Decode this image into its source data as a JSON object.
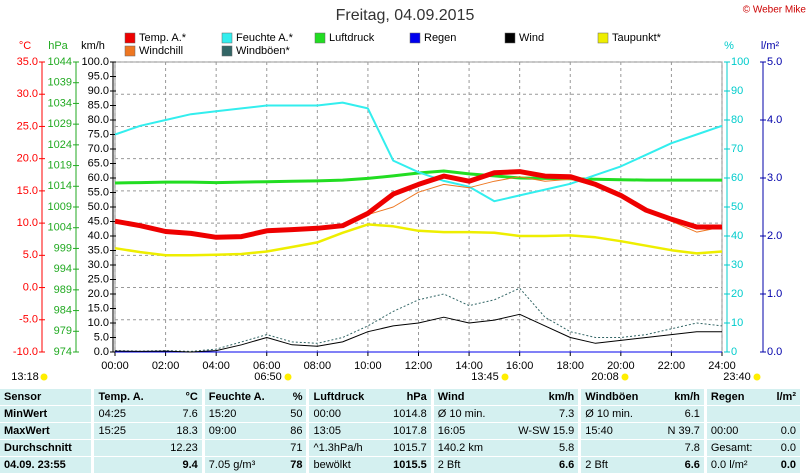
{
  "chart_data": {
    "type": "line",
    "title": "Freitag, 04.09.2015",
    "credit": "© Weber Mike",
    "x": [
      0,
      1,
      2,
      3,
      4,
      5,
      6,
      7,
      8,
      9,
      10,
      11,
      12,
      13,
      14,
      15,
      16,
      17,
      18,
      19,
      20,
      21,
      22,
      23,
      24
    ],
    "xlim": [
      0,
      24
    ],
    "xticks": [
      {
        "value": 0,
        "label": "00:00"
      },
      {
        "value": 2,
        "label": "02:00"
      },
      {
        "value": 4,
        "label": "04:00"
      },
      {
        "value": 6,
        "label": "06:00"
      },
      {
        "value": 8,
        "label": "08:00"
      },
      {
        "value": 10,
        "label": "10:00"
      },
      {
        "value": 12,
        "label": "12:00"
      },
      {
        "value": 14,
        "label": "14:00"
      },
      {
        "value": 16,
        "label": "16:00"
      },
      {
        "value": 18,
        "label": "18:00"
      },
      {
        "value": 20,
        "label": "20:00"
      },
      {
        "value": 22,
        "label": "22:00"
      },
      {
        "value": 24,
        "label": "24:00"
      }
    ],
    "grid": true,
    "grid_axis": 0,
    "axes": [
      {
        "label": "°C",
        "color": "#ff0000",
        "lim": [
          -10,
          35
        ],
        "ticks": [
          {
            "value": -10,
            "label": "-10.0"
          },
          {
            "value": -5,
            "label": "-5.0"
          },
          {
            "value": 0,
            "label": "0.0"
          },
          {
            "value": 5,
            "label": "5.0"
          },
          {
            "value": 10,
            "label": "10.0"
          },
          {
            "value": 15,
            "label": "15.0"
          },
          {
            "value": 20,
            "label": "20.0"
          },
          {
            "value": 25,
            "label": "25.0"
          },
          {
            "value": 30,
            "label": "30.0"
          },
          {
            "value": 35,
            "label": "35.0"
          }
        ]
      },
      {
        "label": "hPa",
        "color": "#22aa22",
        "lim": [
          974,
          1044
        ],
        "ticks": [
          974,
          979,
          984,
          989,
          994,
          999,
          1004,
          1009,
          1014,
          1019,
          1024,
          1029,
          1034,
          1039,
          1044
        ]
      },
      {
        "label": "km/h",
        "color": "#000000",
        "lim": [
          0,
          100
        ],
        "ticks": [
          {
            "value": 0,
            "label": "0.0"
          },
          {
            "value": 5,
            "label": "5.0"
          },
          {
            "value": 10,
            "label": "10.0"
          },
          {
            "value": 15,
            "label": "15.0"
          },
          {
            "value": 20,
            "label": "20.0"
          },
          {
            "value": 25,
            "label": "25.0"
          },
          {
            "value": 30,
            "label": "30.0"
          },
          {
            "value": 35,
            "label": "35.0"
          },
          {
            "value": 40,
            "label": "40.0"
          },
          {
            "value": 45,
            "label": "45.0"
          },
          {
            "value": 50,
            "label": "50.0"
          },
          {
            "value": 55,
            "label": "55.0"
          },
          {
            "value": 60,
            "label": "60.0"
          },
          {
            "value": 65,
            "label": "65.0"
          },
          {
            "value": 70,
            "label": "70.0"
          },
          {
            "value": 75,
            "label": "75.0"
          },
          {
            "value": 80,
            "label": "80.0"
          },
          {
            "value": 85,
            "label": "85.0"
          },
          {
            "value": 90,
            "label": "90.0"
          },
          {
            "value": 95,
            "label": "95.0"
          },
          {
            "value": 100,
            "label": "100.0"
          }
        ]
      },
      {
        "label": "%",
        "color": "#00cccc",
        "lim": [
          0,
          100
        ],
        "ticks": [
          0,
          10,
          20,
          30,
          40,
          50,
          60,
          70,
          80,
          90,
          100
        ]
      },
      {
        "label": "l/m²",
        "color": "#0000aa",
        "lim": [
          0,
          5
        ],
        "ticks": [
          {
            "value": 0,
            "label": "0.0"
          },
          {
            "value": 1,
            "label": "1.0"
          },
          {
            "value": 2,
            "label": "2.0"
          },
          {
            "value": 3,
            "label": "3.0"
          },
          {
            "value": 4,
            "label": "4.0"
          },
          {
            "value": 5,
            "label": "5.0"
          }
        ]
      }
    ],
    "series": [
      {
        "name": "Luftdruck",
        "color": "#22dd22",
        "axis": 1,
        "values": [
          1014.8,
          1014.9,
          1015.0,
          1015.0,
          1014.9,
          1015.0,
          1015.1,
          1015.2,
          1015.3,
          1015.5,
          1015.9,
          1016.5,
          1017.2,
          1017.7,
          1017.0,
          1016.5,
          1016.0,
          1015.9,
          1015.8,
          1015.7,
          1015.6,
          1015.5,
          1015.5,
          1015.5,
          1015.5
        ]
      },
      {
        "name": "Feuchte A.*",
        "color": "#33eeee",
        "axis": 3,
        "values": [
          75,
          78,
          80,
          82,
          83,
          84,
          85,
          85,
          85,
          86,
          84,
          66,
          62,
          59,
          57,
          52,
          54,
          56,
          58,
          61,
          64,
          68,
          72,
          75,
          78
        ]
      },
      {
        "name": "Taupunkt*",
        "color": "#eeee00",
        "axis": 0,
        "values": [
          6.1,
          5.5,
          5.0,
          5.0,
          5.1,
          5.2,
          5.6,
          6.3,
          7.0,
          8.5,
          9.8,
          9.5,
          8.8,
          8.6,
          8.6,
          8.5,
          8.0,
          8.0,
          8.1,
          7.8,
          7.2,
          6.5,
          5.8,
          5.3,
          5.6
        ]
      },
      {
        "name": "Windchill",
        "color": "#ee7722",
        "axis": 0,
        "values": [
          10.3,
          9.6,
          8.7,
          8.4,
          7.8,
          7.9,
          8.8,
          9.0,
          9.2,
          9.6,
          11.3,
          12.5,
          14.8,
          16.0,
          15.5,
          16.5,
          17.2,
          16.5,
          16.8,
          15.8,
          14.0,
          11.8,
          10.3,
          8.6,
          9.4
        ]
      },
      {
        "name": "Temp. A.*",
        "color": "#ee0000",
        "axis": 0,
        "values": [
          10.3,
          9.6,
          8.7,
          8.4,
          7.8,
          7.9,
          8.8,
          9.0,
          9.2,
          9.6,
          11.5,
          14.5,
          16.0,
          17.3,
          16.5,
          17.8,
          18.0,
          17.3,
          17.2,
          16.0,
          14.3,
          12.0,
          10.6,
          9.4,
          9.4
        ]
      },
      {
        "name": "Regen",
        "color": "#0000ee",
        "axis": 4,
        "values": [
          0,
          0,
          0,
          0,
          0,
          0,
          0,
          0,
          0,
          0,
          0,
          0,
          0,
          0,
          0,
          0,
          0,
          0,
          0,
          0,
          0,
          0,
          0,
          0,
          0
        ]
      },
      {
        "name": "Windböen*",
        "color": "#336666",
        "axis": 2,
        "values": [
          0.5,
          0.3,
          0.5,
          0.2,
          1,
          3.5,
          6,
          3.5,
          3,
          5,
          9,
          14,
          18,
          20,
          16,
          18,
          22,
          12,
          7,
          5,
          5,
          6,
          8,
          10,
          9
        ]
      },
      {
        "name": "Wind",
        "color": "#000000",
        "axis": 2,
        "values": [
          0.3,
          0.2,
          0.3,
          0,
          0.5,
          2.5,
          5,
          2.5,
          2,
          3.5,
          7,
          9,
          10,
          12,
          10,
          11,
          13,
          9,
          5,
          3,
          4,
          5,
          6,
          7,
          7
        ]
      }
    ],
    "time_notes": [
      "13:18",
      "06:50",
      "13:45",
      "20:08",
      "23:40"
    ]
  },
  "table": {
    "header": [
      "Sensor",
      "Temp. A.",
      "°C",
      "Feuchte A.",
      "%",
      "Luftdruck",
      "hPa",
      "Wind",
      "km/h",
      "Windböen",
      "km/h",
      "Regen",
      "l/m²"
    ],
    "rows": [
      [
        "MinWert",
        "04:25",
        "7.6",
        "15:20",
        "50",
        "00:00",
        "1014.8",
        "Ø 10 min.",
        "7.3",
        "Ø 10 min.",
        "6.1",
        null,
        null
      ],
      [
        "MaxWert",
        "15:25",
        "18.3",
        "09:00",
        "86",
        "13:05",
        "1017.8",
        "16:05",
        "W-SW 15.9",
        "15:40",
        "N 39.7",
        "00:00",
        "0.0"
      ],
      [
        "Durchschnitt",
        null,
        "12.23",
        null,
        "71",
        "^1.3hPa/h",
        "1015.7",
        "140.2 km",
        "5.8",
        null,
        "7.8",
        "Gesamt:",
        "0.0"
      ],
      [
        "04.09. 23:55",
        null,
        "9.4",
        "7.05 g/m³",
        "78",
        "bewölkt",
        "1015.5",
        "2 Bft",
        "6.6",
        "2 Bft",
        "6.6",
        "0.0 l/m²",
        "0.0"
      ]
    ]
  }
}
